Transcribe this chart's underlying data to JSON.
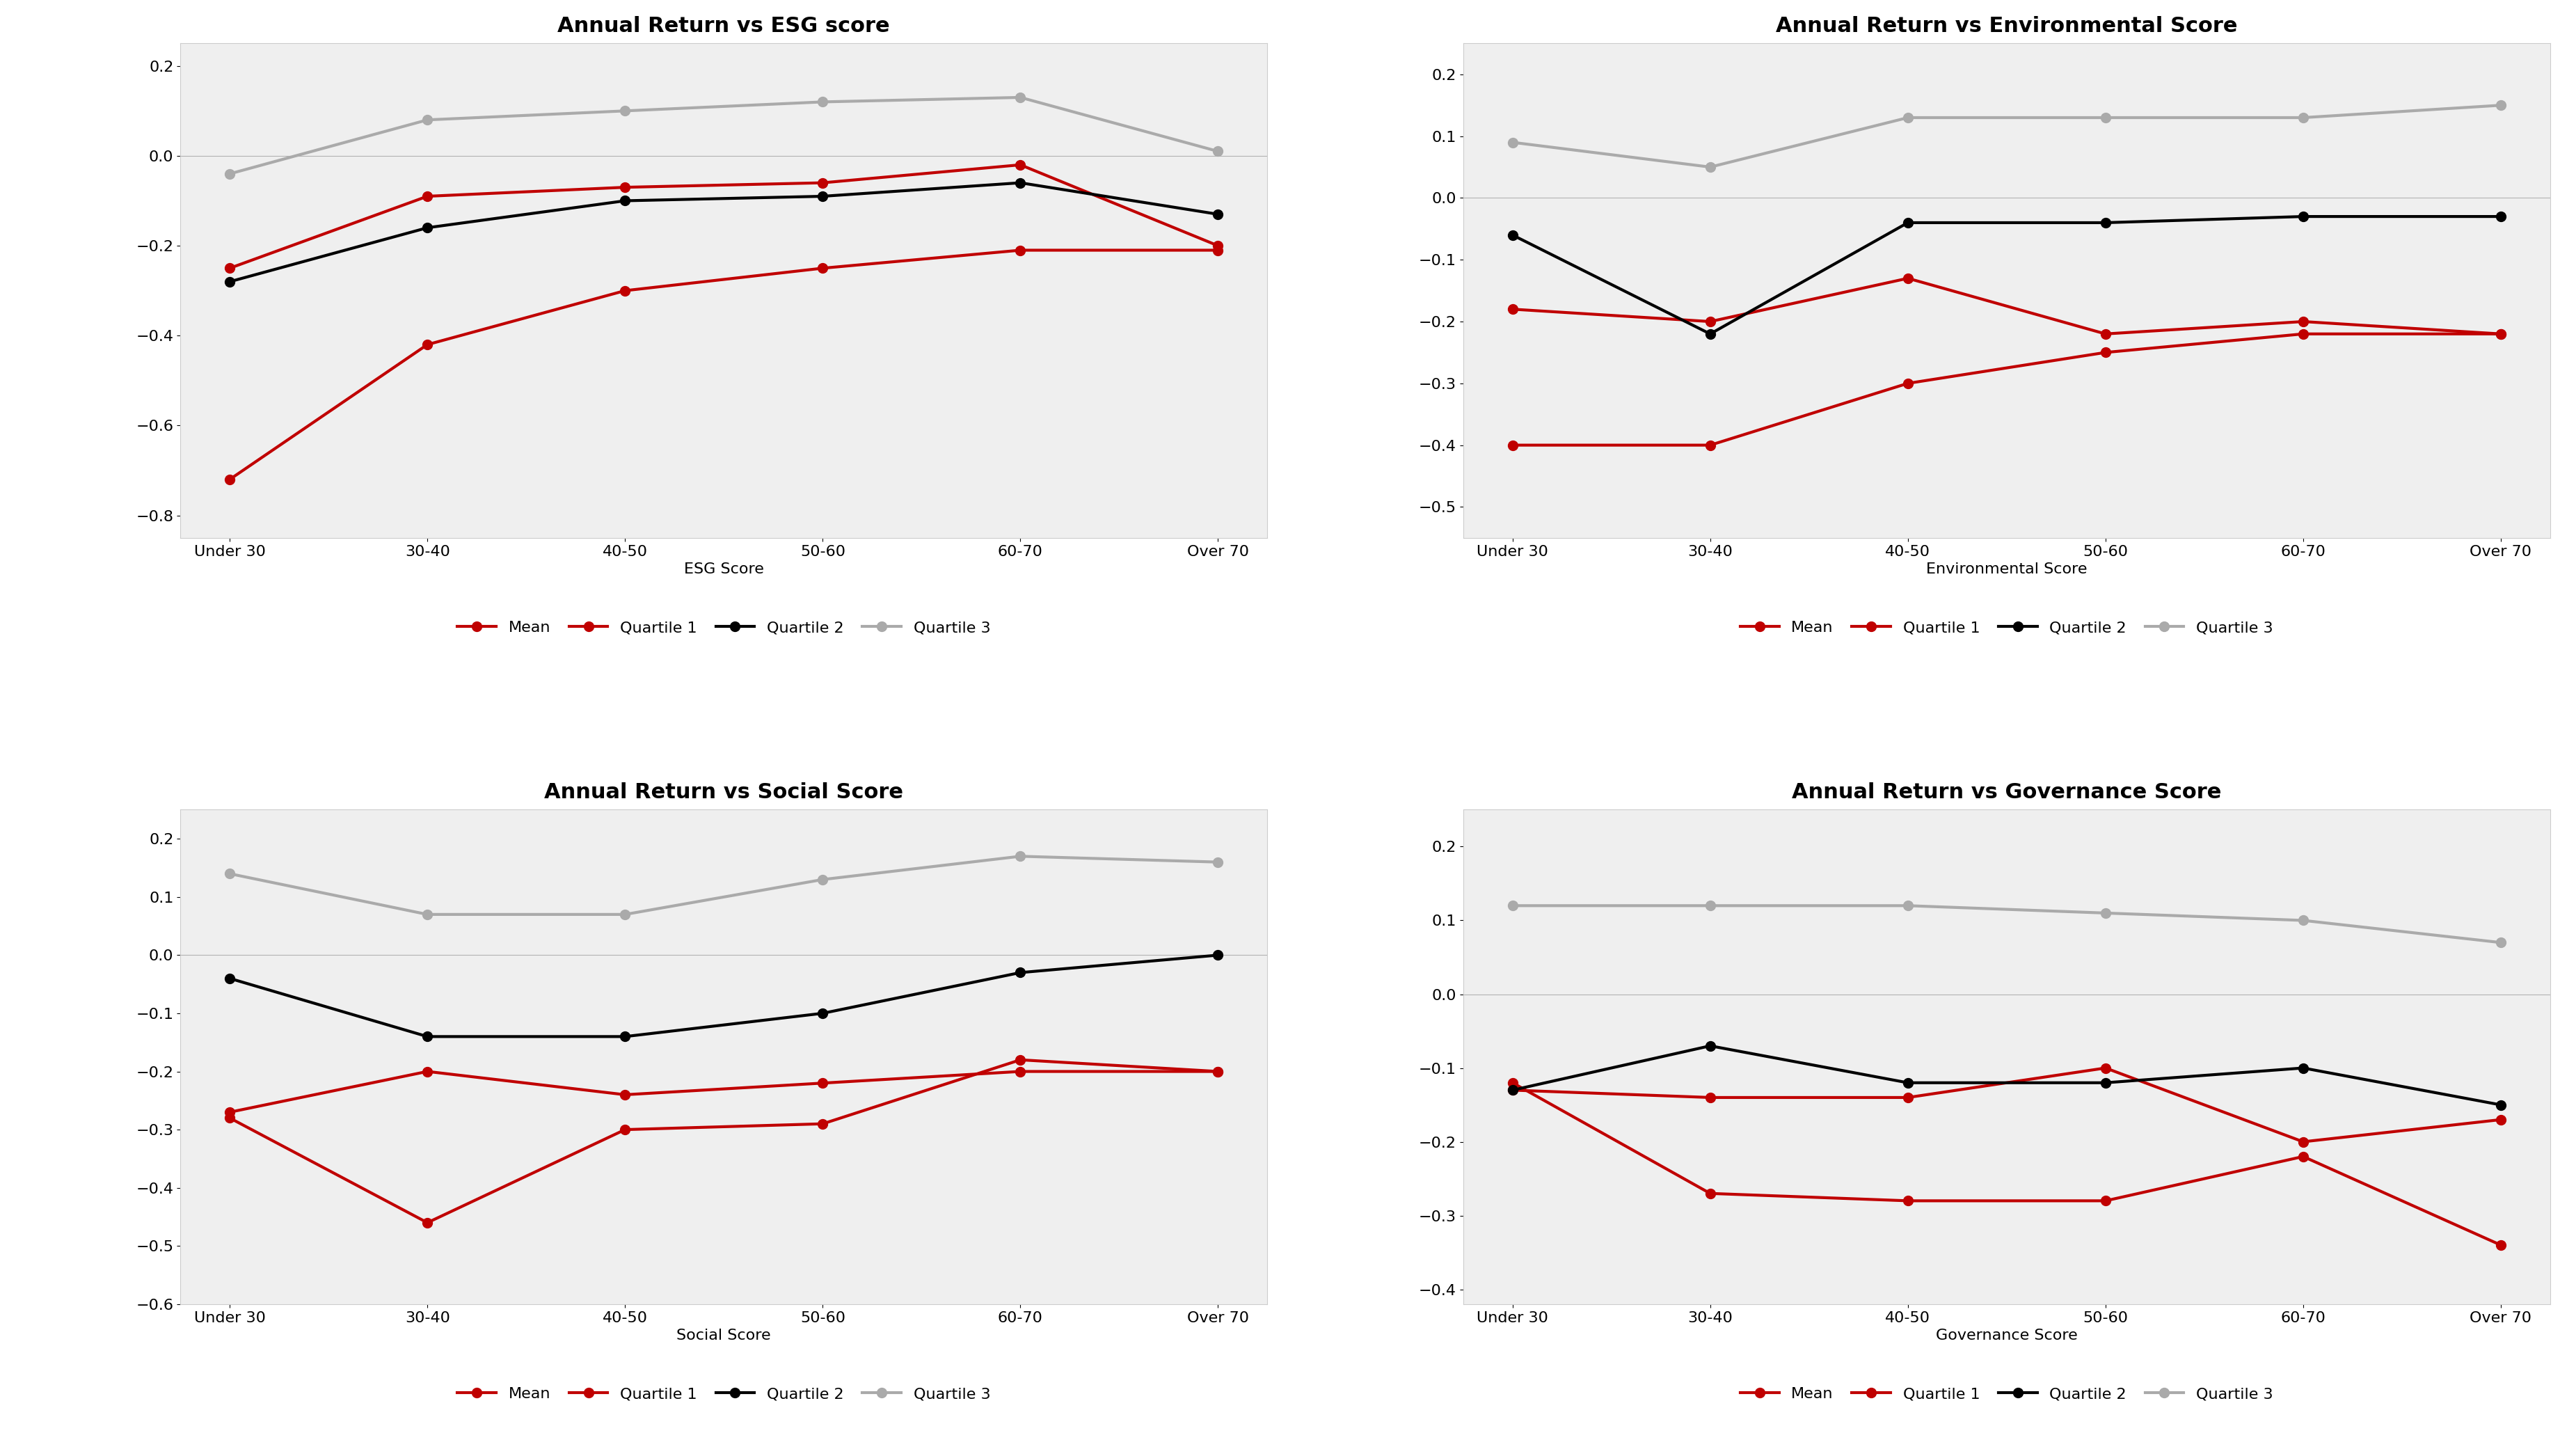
{
  "categories": [
    "Under 30",
    "30-40",
    "40-50",
    "50-60",
    "60-70",
    "Over 70"
  ],
  "chart1": {
    "title": "Annual Return vs ESG score",
    "xlabel": "ESG Score",
    "mean": [
      -0.25,
      -0.09,
      -0.07,
      -0.06,
      -0.02,
      -0.2
    ],
    "quartile1": [
      -0.72,
      -0.42,
      -0.3,
      -0.25,
      -0.21,
      -0.21
    ],
    "quartile2": [
      -0.28,
      -0.16,
      -0.1,
      -0.09,
      -0.06,
      -0.13
    ],
    "quartile3": [
      -0.04,
      0.08,
      0.1,
      0.12,
      0.13,
      0.01
    ],
    "ylim": [
      -0.85,
      0.25
    ]
  },
  "chart2": {
    "title": "Annual Return vs Environmental Score",
    "xlabel": "Environmental Score",
    "mean": [
      -0.18,
      -0.2,
      -0.13,
      -0.22,
      -0.2,
      -0.22
    ],
    "quartile1": [
      -0.4,
      -0.4,
      -0.3,
      -0.25,
      -0.22,
      -0.22
    ],
    "quartile2": [
      -0.06,
      -0.22,
      -0.04,
      -0.04,
      -0.03,
      -0.03
    ],
    "quartile3": [
      0.09,
      0.05,
      0.13,
      0.13,
      0.13,
      0.15
    ],
    "ylim": [
      -0.55,
      0.25
    ]
  },
  "chart3": {
    "title": "Annual Return vs Social Score",
    "xlabel": "Social Score",
    "mean": [
      -0.27,
      -0.2,
      -0.24,
      -0.22,
      -0.2,
      -0.2
    ],
    "quartile1": [
      -0.28,
      -0.46,
      -0.3,
      -0.29,
      -0.18,
      -0.2
    ],
    "quartile2": [
      -0.04,
      -0.14,
      -0.14,
      -0.1,
      -0.03,
      0.0
    ],
    "quartile3": [
      0.14,
      0.07,
      0.07,
      0.13,
      0.17,
      0.16
    ],
    "ylim": [
      -0.6,
      0.25
    ]
  },
  "chart4": {
    "title": "Annual Return vs Governance Score",
    "xlabel": "Governance Score",
    "mean": [
      -0.12,
      -0.27,
      -0.28,
      -0.28,
      -0.22,
      -0.34
    ],
    "quartile1": [
      -0.13,
      -0.14,
      -0.14,
      -0.1,
      -0.2,
      -0.17
    ],
    "quartile2": [
      -0.13,
      -0.07,
      -0.12,
      -0.12,
      -0.1,
      -0.15
    ],
    "quartile3": [
      0.12,
      0.12,
      0.12,
      0.11,
      0.1,
      0.07
    ],
    "ylim": [
      -0.42,
      0.25
    ]
  },
  "color_mean": "#c00000",
  "color_q1": "#c00000",
  "color_q2": "#000000",
  "color_q3": "#aaaaaa",
  "marker": "o",
  "markersize": 10,
  "linewidth": 3.0,
  "background_color": "#efefef",
  "title_fontsize": 22,
  "label_fontsize": 16,
  "tick_fontsize": 16,
  "legend_fontsize": 16
}
